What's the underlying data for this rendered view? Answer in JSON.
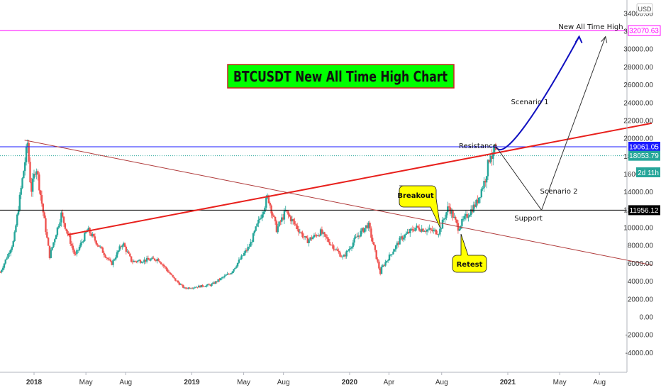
{
  "chart_data": {
    "type": "candlestick",
    "title": "BTCUSDT New All Time High Chart",
    "currency": "USD",
    "y_ticks": [
      -4000,
      -2000,
      0,
      2000,
      4000,
      6000,
      8000,
      10000,
      12000,
      14000,
      16000,
      18000,
      20000,
      22000,
      24000,
      26000,
      28000,
      30000,
      32000,
      34000
    ],
    "y_tick_labels": [
      "-4000.00",
      "-2000.00",
      "0.00",
      "2000.00",
      "4000.00",
      "6000.00",
      "8000.00",
      "10000.00",
      "12000.00",
      "14000.00",
      "16000.00",
      "18000.00",
      "20000.00",
      "22000.00",
      "24000.00",
      "26000.00",
      "28000.00",
      "30000.00",
      "32000.00",
      "34000.00"
    ],
    "ylim": [
      -6200,
      35500
    ],
    "x_ticks": [
      {
        "label": "2018",
        "year": true
      },
      {
        "label": "May",
        "year": false
      },
      {
        "label": "Aug",
        "year": false
      },
      {
        "label": "2019",
        "year": true
      },
      {
        "label": "May",
        "year": false
      },
      {
        "label": "Aug",
        "year": false
      },
      {
        "label": "2020",
        "year": true
      },
      {
        "label": "Apr",
        "year": false
      },
      {
        "label": "Aug",
        "year": false
      },
      {
        "label": "2021",
        "year": true
      },
      {
        "label": "May",
        "year": false
      },
      {
        "label": "Aug",
        "year": false
      }
    ],
    "price_path": [
      [
        "2017-10-15",
        5000
      ],
      [
        "2017-11-15",
        8500
      ],
      [
        "2017-12-17",
        19500
      ],
      [
        "2017-12-25",
        14000
      ],
      [
        "2018-01-06",
        17000
      ],
      [
        "2018-02-06",
        6800
      ],
      [
        "2018-03-05",
        11500
      ],
      [
        "2018-04-06",
        6800
      ],
      [
        "2018-05-05",
        9800
      ],
      [
        "2018-06-29",
        5900
      ],
      [
        "2018-07-25",
        8300
      ],
      [
        "2018-08-15",
        6200
      ],
      [
        "2018-10-15",
        6500
      ],
      [
        "2018-11-20",
        4300
      ],
      [
        "2018-12-15",
        3200
      ],
      [
        "2019-02-15",
        3600
      ],
      [
        "2019-04-02",
        5000
      ],
      [
        "2019-05-15",
        8000
      ],
      [
        "2019-06-26",
        13500
      ],
      [
        "2019-07-16",
        9800
      ],
      [
        "2019-08-06",
        11800
      ],
      [
        "2019-09-24",
        8500
      ],
      [
        "2019-10-26",
        9500
      ],
      [
        "2019-12-17",
        6600
      ],
      [
        "2020-01-15",
        8800
      ],
      [
        "2020-02-13",
        10400
      ],
      [
        "2020-03-12",
        4900
      ],
      [
        "2020-03-13",
        5300
      ],
      [
        "2020-04-29",
        8800
      ],
      [
        "2020-06-01",
        10000
      ],
      [
        "2020-07-26",
        9500
      ],
      [
        "2020-08-17",
        12400
      ],
      [
        "2020-09-08",
        10000
      ],
      [
        "2020-10-21",
        12800
      ],
      [
        "2020-11-10",
        15500
      ],
      [
        "2020-11-24",
        19000
      ],
      [
        "2020-11-26",
        17000
      ],
      [
        "2020-12-01",
        19061
      ],
      [
        "2020-12-05",
        18054
      ]
    ],
    "horizontal_levels": [
      {
        "name": "all-time-high",
        "value": 32070.63,
        "label": "32070.63",
        "color": "#ff00ff"
      },
      {
        "name": "resistance",
        "value": 19061.05,
        "label": "19061.05",
        "color": "#1a1aff"
      },
      {
        "name": "last-price",
        "value": 18053.79,
        "label": "18053.79",
        "color": "#26a69a"
      },
      {
        "name": "support",
        "value": 11956.12,
        "label": "11956.12",
        "color": "#000000"
      }
    ],
    "countdown_label": "2d 11h",
    "trendlines": [
      {
        "name": "rising-resistance-trendline",
        "color": "#e8201c",
        "points": [
          [
            "2018-03-20",
            9200
          ],
          [
            "2021-11-30",
            21700
          ]
        ]
      },
      {
        "name": "falling-trendline",
        "color": "#b03a3a",
        "points": [
          [
            "2017-12-10",
            19800
          ],
          [
            "2021-11-30",
            5800
          ]
        ]
      }
    ],
    "annotations": {
      "scenario_1": "Scenario 1",
      "scenario_2": "Scenario 2",
      "resistance": "Resistance",
      "support": "Support",
      "breakout": "Breakout",
      "retest": "Retest",
      "new_ath": "New All Time High"
    },
    "scenario_1_path": [
      [
        "2020-12-05",
        19061
      ],
      [
        "2020-12-20",
        17400
      ],
      [
        "2021-03-01",
        22000
      ],
      [
        "2021-06-15",
        31400
      ]
    ],
    "scenario_2_path": [
      [
        "2020-12-05",
        19061
      ],
      [
        "2021-03-20",
        11956
      ],
      [
        "2021-08-15",
        31400
      ]
    ],
    "colors": {
      "up": "#26a69a",
      "down": "#ef5350",
      "title_bg": "#00ff00",
      "title_border": "#cc2222",
      "callout_bg": "#ffff00"
    }
  }
}
